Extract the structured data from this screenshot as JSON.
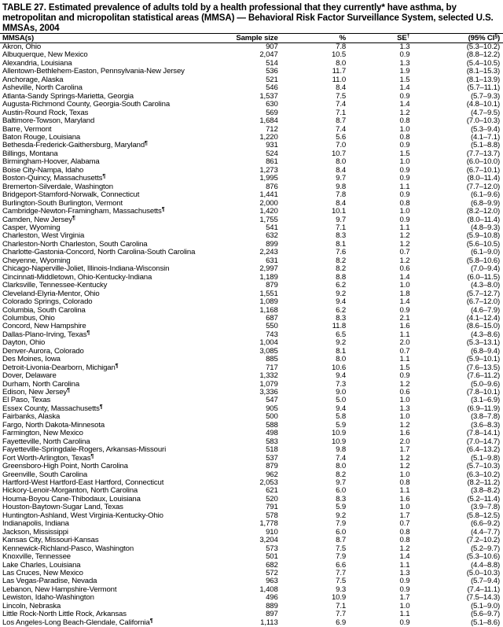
{
  "title": "TABLE 27. Estimated prevalence of adults told by a health professional that they currently* have asthma, by metropolitan and micropolitan statistical areas (MMSA) — Behavioral Risk Factor Surveillance System, selected U.S. MMSAs, 2004",
  "headers": {
    "mmsa": "MMSA(s)",
    "sample_size": "Sample size",
    "percent": "%",
    "se": "SE",
    "se_mark": "†",
    "ci": "(95% CI",
    "ci_mark": "§",
    "ci_close": ")"
  },
  "rows": [
    {
      "name": "Akron, Ohio",
      "mark": "",
      "n": "907",
      "pct": "7.8",
      "se": "1.3",
      "ci": "(5.3–10.2)"
    },
    {
      "name": "Albuquerque, New Mexico",
      "mark": "",
      "n": "2,047",
      "pct": "10.5",
      "se": "0.9",
      "ci": "(8.8–12.2)"
    },
    {
      "name": "Alexandria, Louisiana",
      "mark": "",
      "n": "514",
      "pct": "8.0",
      "se": "1.3",
      "ci": "(5.4–10.5)"
    },
    {
      "name": "Allentown-Bethlehem-Easton, Pennsylvania-New Jersey",
      "mark": "",
      "n": "536",
      "pct": "11.7",
      "se": "1.9",
      "ci": "(8.1–15.3)"
    },
    {
      "name": "Anchorage, Alaska",
      "mark": "",
      "n": "521",
      "pct": "11.0",
      "se": "1.5",
      "ci": "(8.1–13.9)"
    },
    {
      "name": "Asheville, North Carolina",
      "mark": "",
      "n": "546",
      "pct": "8.4",
      "se": "1.4",
      "ci": "(5.7–11.1)"
    },
    {
      "name": "Atlanta-Sandy Springs-Marietta, Georgia",
      "mark": "",
      "n": "1,537",
      "pct": "7.5",
      "se": "0.9",
      "ci": "(5.7–9.3)"
    },
    {
      "name": "Augusta-Richmond County, Georgia-South Carolina",
      "mark": "",
      "n": "630",
      "pct": "7.4",
      "se": "1.4",
      "ci": "(4.8–10.1)"
    },
    {
      "name": "Austin-Round Rock, Texas",
      "mark": "",
      "n": "569",
      "pct": "7.1",
      "se": "1.2",
      "ci": "(4.7–9.5)"
    },
    {
      "name": "Baltimore-Towson, Maryland",
      "mark": "",
      "n": "1,684",
      "pct": "8.7",
      "se": "0.8",
      "ci": "(7.0–10.3)"
    },
    {
      "name": "Barre, Vermont",
      "mark": "",
      "n": "712",
      "pct": "7.4",
      "se": "1.0",
      "ci": "(5.3–9.4)"
    },
    {
      "name": "Baton Rouge, Louisiana",
      "mark": "",
      "n": "1,220",
      "pct": "5.6",
      "se": "0.8",
      "ci": "(4.1–7.1)"
    },
    {
      "name": "Bethesda-Frederick-Gaithersburg, Maryland",
      "mark": "¶",
      "n": "931",
      "pct": "7.0",
      "se": "0.9",
      "ci": "(5.1–8.8)"
    },
    {
      "name": "Billings, Montana",
      "mark": "",
      "n": "524",
      "pct": "10.7",
      "se": "1.5",
      "ci": "(7.7–13.7)"
    },
    {
      "name": "Birmingham-Hoover, Alabama",
      "mark": "",
      "n": "861",
      "pct": "8.0",
      "se": "1.0",
      "ci": "(6.0–10.0)"
    },
    {
      "name": "Boise City-Nampa, Idaho",
      "mark": "",
      "n": "1,273",
      "pct": "8.4",
      "se": "0.9",
      "ci": "(6.7–10.1)"
    },
    {
      "name": "Boston-Quincy, Massachusetts",
      "mark": "¶",
      "n": "1,995",
      "pct": "9.7",
      "se": "0.9",
      "ci": "(8.0–11.4)"
    },
    {
      "name": "Bremerton-Silverdale, Washington",
      "mark": "",
      "n": "876",
      "pct": "9.8",
      "se": "1.1",
      "ci": "(7.7–12.0)"
    },
    {
      "name": "Bridgeport-Stamford-Norwalk, Connecticut",
      "mark": "",
      "n": "1,441",
      "pct": "7.8",
      "se": "0.9",
      "ci": "(6.1–9.6)"
    },
    {
      "name": "Burlington-South Burlington, Vermont",
      "mark": "",
      "n": "2,000",
      "pct": "8.4",
      "se": "0.8",
      "ci": "(6.8–9.9)"
    },
    {
      "name": "Cambridge-Newton-Framingham, Massachusetts",
      "mark": "¶",
      "n": "1,420",
      "pct": "10.1",
      "se": "1.0",
      "ci": "(8.2–12.0)"
    },
    {
      "name": "Camden, New Jersey",
      "mark": "¶",
      "n": "1,755",
      "pct": "9.7",
      "se": "0.9",
      "ci": "(8.0–11.4)"
    },
    {
      "name": "Casper, Wyoming",
      "mark": "",
      "n": "541",
      "pct": "7.1",
      "se": "1.1",
      "ci": "(4.8–9.3)"
    },
    {
      "name": "Charleston, West Virginia",
      "mark": "",
      "n": "632",
      "pct": "8.3",
      "se": "1.2",
      "ci": "(5.9–10.8)"
    },
    {
      "name": "Charleston-North Charleston, South Carolina",
      "mark": "",
      "n": "899",
      "pct": "8.1",
      "se": "1.2",
      "ci": "(5.6–10.5)"
    },
    {
      "name": "Charlotte-Gastonia-Concord, North Carolina-South Carolina",
      "mark": "",
      "n": "2,243",
      "pct": "7.6",
      "se": "0.7",
      "ci": "(6.1–9.0)"
    },
    {
      "name": "Cheyenne, Wyoming",
      "mark": "",
      "n": "631",
      "pct": "8.2",
      "se": "1.2",
      "ci": "(5.8–10.6)"
    },
    {
      "name": "Chicago-Naperville-Joliet, Illinois-Indiana-Wisconsin",
      "mark": "",
      "n": "2,997",
      "pct": "8.2",
      "se": "0.6",
      "ci": "(7.0–9.4)"
    },
    {
      "name": "Cincinnati-Middletown, Ohio-Kentucky-Indiana",
      "mark": "",
      "n": "1,189",
      "pct": "8.8",
      "se": "1.4",
      "ci": "(6.0–11.5)"
    },
    {
      "name": "Clarksville, Tennessee-Kentucky",
      "mark": "",
      "n": "879",
      "pct": "6.2",
      "se": "1.0",
      "ci": "(4.3–8.0)"
    },
    {
      "name": "Cleveland-Elyria-Mentor, Ohio",
      "mark": "",
      "n": "1,551",
      "pct": "9.2",
      "se": "1.8",
      "ci": "(5.7–12.7)"
    },
    {
      "name": "Colorado Springs, Colorado",
      "mark": "",
      "n": "1,089",
      "pct": "9.4",
      "se": "1.4",
      "ci": "(6.7–12.0)"
    },
    {
      "name": "Columbia, South Carolina",
      "mark": "",
      "n": "1,168",
      "pct": "6.2",
      "se": "0.9",
      "ci": "(4.6–7.9)"
    },
    {
      "name": "Columbus, Ohio",
      "mark": "",
      "n": "687",
      "pct": "8.3",
      "se": "2.1",
      "ci": "(4.1–12.4)"
    },
    {
      "name": "Concord, New Hampshire",
      "mark": "",
      "n": "550",
      "pct": "11.8",
      "se": "1.6",
      "ci": "(8.6–15.0)"
    },
    {
      "name": "Dallas-Plano-Irving, Texas",
      "mark": "¶",
      "n": "743",
      "pct": "6.5",
      "se": "1.1",
      "ci": "(4.3–8.6)"
    },
    {
      "name": "Dayton, Ohio",
      "mark": "",
      "n": "1,004",
      "pct": "9.2",
      "se": "2.0",
      "ci": "(5.3–13.1)"
    },
    {
      "name": "Denver-Aurora, Colorado",
      "mark": "",
      "n": "3,085",
      "pct": "8.1",
      "se": "0.7",
      "ci": "(6.8–9.4)"
    },
    {
      "name": "Des Moines, Iowa",
      "mark": "",
      "n": "885",
      "pct": "8.0",
      "se": "1.1",
      "ci": "(5.9–10.1)"
    },
    {
      "name": "Detroit-Livonia-Dearborn, Michigan",
      "mark": "¶",
      "n": "717",
      "pct": "10.6",
      "se": "1.5",
      "ci": "(7.6–13.5)"
    },
    {
      "name": "Dover, Delaware",
      "mark": "",
      "n": "1,332",
      "pct": "9.4",
      "se": "0.9",
      "ci": "(7.6–11.2)"
    },
    {
      "name": "Durham, North Carolina",
      "mark": "",
      "n": "1,079",
      "pct": "7.3",
      "se": "1.2",
      "ci": "(5.0–9.6)"
    },
    {
      "name": "Edison, New Jersey",
      "mark": "¶",
      "n": "3,336",
      "pct": "9.0",
      "se": "0.6",
      "ci": "(7.8–10.1)"
    },
    {
      "name": "El Paso, Texas",
      "mark": "",
      "n": "547",
      "pct": "5.0",
      "se": "1.0",
      "ci": "(3.1–6.9)"
    },
    {
      "name": "Essex County, Massachusetts",
      "mark": "¶",
      "n": "905",
      "pct": "9.4",
      "se": "1.3",
      "ci": "(6.9–11.9)"
    },
    {
      "name": "Fairbanks, Alaska",
      "mark": "",
      "n": "500",
      "pct": "5.8",
      "se": "1.0",
      "ci": "(3.8–7.8)"
    },
    {
      "name": "Fargo, North Dakota-Minnesota",
      "mark": "",
      "n": "588",
      "pct": "5.9",
      "se": "1.2",
      "ci": "(3.6–8.3)"
    },
    {
      "name": "Farmington, New Mexico",
      "mark": "",
      "n": "498",
      "pct": "10.9",
      "se": "1.6",
      "ci": "(7.8–14.1)"
    },
    {
      "name": "Fayetteville, North Carolina",
      "mark": "",
      "n": "583",
      "pct": "10.9",
      "se": "2.0",
      "ci": "(7.0–14.7)"
    },
    {
      "name": "Fayetteville-Springdale-Rogers, Arkansas-Missouri",
      "mark": "",
      "n": "518",
      "pct": "9.8",
      "se": "1.7",
      "ci": "(6.4–13.2)"
    },
    {
      "name": "Fort Worth-Arlington, Texas",
      "mark": "¶",
      "n": "537",
      "pct": "7.4",
      "se": "1.2",
      "ci": "(5.1–9.8)"
    },
    {
      "name": "Greensboro-High Point, North Carolina",
      "mark": "",
      "n": "879",
      "pct": "8.0",
      "se": "1.2",
      "ci": "(5.7–10.3)"
    },
    {
      "name": "Greenville, South Carolina",
      "mark": "",
      "n": "962",
      "pct": "8.2",
      "se": "1.0",
      "ci": "(6.3–10.2)"
    },
    {
      "name": "Hartford-West Hartford-East Hartford, Connecticut",
      "mark": "",
      "n": "2,053",
      "pct": "9.7",
      "se": "0.8",
      "ci": "(8.2–11.2)"
    },
    {
      "name": "Hickory-Lenoir-Morganton, North Carolina",
      "mark": "",
      "n": "621",
      "pct": "6.0",
      "se": "1.1",
      "ci": "(3.8–8.2)"
    },
    {
      "name": "Houma-Boyou Cane-Thibodaux, Louisiana",
      "mark": "",
      "n": "520",
      "pct": "8.3",
      "se": "1.6",
      "ci": "(5.2–11.4)"
    },
    {
      "name": "Houston-Baytown-Sugar Land, Texas",
      "mark": "",
      "n": "791",
      "pct": "5.9",
      "se": "1.0",
      "ci": "(3.9–7.8)"
    },
    {
      "name": "Huntington-Ashland, West Virginia-Kentucky-Ohio",
      "mark": "",
      "n": "578",
      "pct": "9.2",
      "se": "1.7",
      "ci": "(5.8–12.5)"
    },
    {
      "name": "Indianapolis, Indiana",
      "mark": "",
      "n": "1,778",
      "pct": "7.9",
      "se": "0.7",
      "ci": "(6.6–9.2)"
    },
    {
      "name": "Jackson, Mississippi",
      "mark": "",
      "n": "910",
      "pct": "6.0",
      "se": "0.8",
      "ci": "(4.4–7.7)"
    },
    {
      "name": "Kansas City, Missouri-Kansas",
      "mark": "",
      "n": "3,204",
      "pct": "8.7",
      "se": "0.8",
      "ci": "(7.2–10.2)"
    },
    {
      "name": "Kennewick-Richland-Pasco, Washington",
      "mark": "",
      "n": "573",
      "pct": "7.5",
      "se": "1.2",
      "ci": "(5.2–9.7)"
    },
    {
      "name": "Knoxville, Tennessee",
      "mark": "",
      "n": "501",
      "pct": "7.9",
      "se": "1.4",
      "ci": "(5.3–10.6)"
    },
    {
      "name": "Lake Charles, Louisiana",
      "mark": "",
      "n": "682",
      "pct": "6.6",
      "se": "1.1",
      "ci": "(4.4–8.8)"
    },
    {
      "name": "Las Cruces, New Mexico",
      "mark": "",
      "n": "572",
      "pct": "7.7",
      "se": "1.3",
      "ci": "(5.0–10.3)"
    },
    {
      "name": "Las Vegas-Paradise, Nevada",
      "mark": "",
      "n": "963",
      "pct": "7.5",
      "se": "0.9",
      "ci": "(5.7–9.4)"
    },
    {
      "name": "Lebanon, New Hampshire-Vermont",
      "mark": "",
      "n": "1,408",
      "pct": "9.3",
      "se": "0.9",
      "ci": "(7.4–11.1)"
    },
    {
      "name": "Lewiston, Idaho-Washington",
      "mark": "",
      "n": "496",
      "pct": "10.9",
      "se": "1.7",
      "ci": "(7.5–14.3)"
    },
    {
      "name": "Lincoln, Nebraska",
      "mark": "",
      "n": "889",
      "pct": "7.1",
      "se": "1.0",
      "ci": "(5.1–9.0)"
    },
    {
      "name": "Little Rock-North Little Rock, Arkansas",
      "mark": "",
      "n": "897",
      "pct": "7.7",
      "se": "1.1",
      "ci": "(5.6–9.7)"
    },
    {
      "name": "Los Angeles-Long Beach-Glendale, California",
      "mark": "¶",
      "n": "1,113",
      "pct": "6.9",
      "se": "0.9",
      "ci": "(5.1–8.6)"
    }
  ]
}
